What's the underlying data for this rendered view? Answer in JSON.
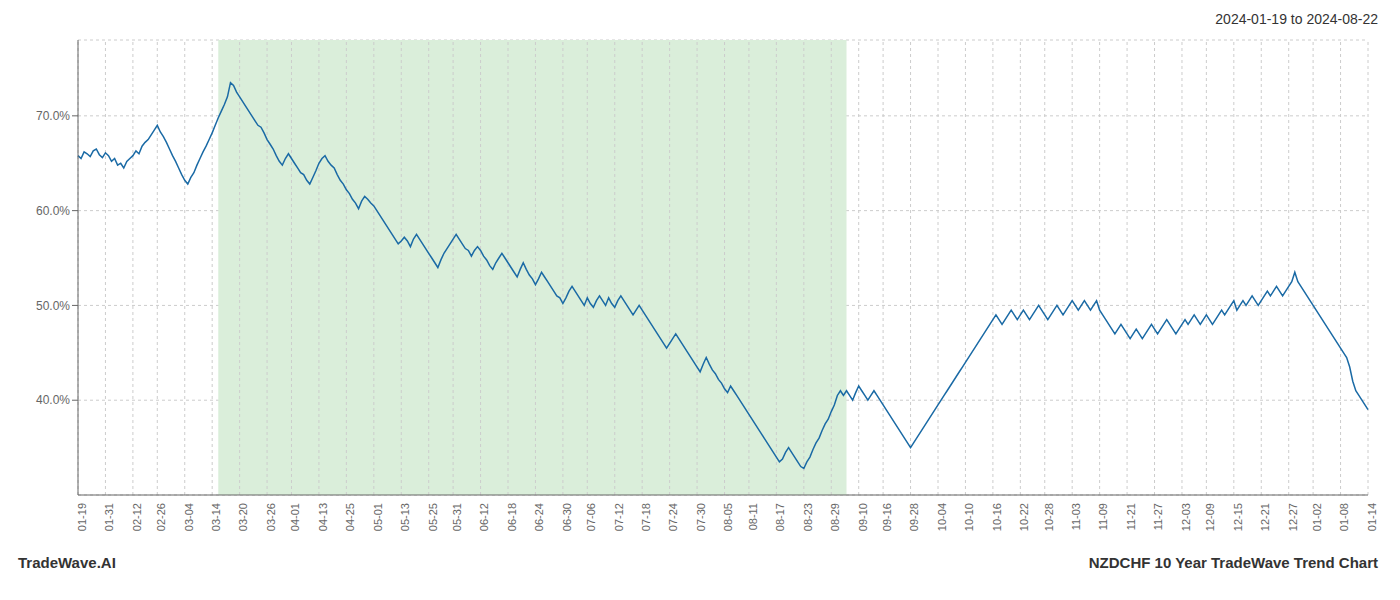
{
  "chart_data": {
    "type": "line",
    "title": "2024-01-19 to 2024-08-22",
    "annotations": [
      "TradeWave.AI",
      "NZDCHF 10 Year TradeWave Trend Chart"
    ],
    "color": "#1a6aa5",
    "grid": true,
    "ylim": [
      30,
      78
    ],
    "yticks": [
      {
        "value": 40,
        "label": "40.0%"
      },
      {
        "value": 50,
        "label": "50.0%"
      },
      {
        "value": 60,
        "label": "60.0%"
      },
      {
        "value": 70,
        "label": "70.0%"
      }
    ],
    "shaded_region": {
      "x_start_frac": 0.108,
      "x_end_frac": 0.595,
      "color": "#daeeda"
    },
    "categories": [
      "01-19",
      null,
      null,
      null,
      null,
      null,
      null,
      null,
      null,
      "01-31",
      null,
      null,
      null,
      null,
      null,
      null,
      null,
      null,
      "02-12",
      null,
      null,
      null,
      null,
      null,
      null,
      null,
      "02-26",
      null,
      null,
      null,
      null,
      null,
      null,
      null,
      null,
      "03-04",
      null,
      null,
      null,
      null,
      null,
      null,
      null,
      null,
      "03-14",
      null,
      null,
      null,
      null,
      null,
      null,
      null,
      null,
      "03-20",
      null,
      null,
      null,
      null,
      null,
      null,
      null,
      null,
      "03-26",
      null,
      null,
      null,
      null,
      null,
      null,
      null,
      "04-01",
      null,
      null,
      null,
      null,
      null,
      null,
      null,
      null,
      "04-13",
      null,
      null,
      null,
      null,
      null,
      null,
      null,
      null,
      "04-25",
      null,
      null,
      null,
      null,
      null,
      null,
      null,
      null,
      "05-01",
      null,
      null,
      null,
      null,
      null,
      null,
      null,
      null,
      "05-13",
      null,
      null,
      null,
      null,
      null,
      null,
      null,
      null,
      "05-25",
      null,
      null,
      null,
      null,
      null,
      null,
      null,
      "05-31",
      null,
      null,
      null,
      null,
      null,
      null,
      null,
      null,
      "06-12",
      null,
      null,
      null,
      null,
      null,
      null,
      null,
      null,
      "06-18",
      null,
      null,
      null,
      null,
      null,
      null,
      null,
      null,
      "06-24",
      null,
      null,
      null,
      null,
      null,
      null,
      null,
      null,
      "06-30",
      null,
      null,
      null,
      null,
      null,
      null,
      null,
      "07-06",
      null,
      null,
      null,
      null,
      null,
      null,
      null,
      null,
      "07-12",
      null,
      null,
      null,
      null,
      null,
      null,
      null,
      null,
      "07-18",
      null,
      null,
      null,
      null,
      null,
      null,
      null,
      null,
      "07-24",
      null,
      null,
      null,
      null,
      null,
      null,
      null,
      null,
      "07-30",
      null,
      null,
      null,
      null,
      null,
      null,
      null,
      null,
      "08-05",
      null,
      null,
      null,
      null,
      null,
      null,
      null,
      "08-11",
      null,
      null,
      null,
      null,
      null,
      null,
      null,
      null,
      "08-17",
      null,
      null,
      null,
      null,
      null,
      null,
      null,
      null,
      "08-23",
      null,
      null,
      null,
      null,
      null,
      null,
      null,
      null,
      "08-29",
      null,
      null,
      null,
      null,
      null,
      null,
      null,
      null,
      "09-10",
      null,
      null,
      null,
      null,
      null,
      null,
      null,
      "09-16",
      null,
      null,
      null,
      null,
      null,
      null,
      null,
      null,
      "09-28",
      null,
      null,
      null,
      null,
      null,
      null,
      null,
      null,
      "10-04",
      null,
      null,
      null,
      null,
      null,
      null,
      null,
      null,
      "10-10",
      null,
      null,
      null,
      null,
      null,
      null,
      null,
      null,
      "10-16",
      null,
      null,
      null,
      null,
      null,
      null,
      null,
      null,
      "10-22",
      null,
      null,
      null,
      null,
      null,
      null,
      null,
      "10-28",
      null,
      null,
      null,
      null,
      null,
      null,
      null,
      null,
      "11-03",
      null,
      null,
      null,
      null,
      null,
      null,
      null,
      null,
      "11-09",
      null,
      null,
      null,
      null,
      null,
      null,
      null,
      null,
      "11-21",
      null,
      null,
      null,
      null,
      null,
      null,
      null,
      null,
      "11-27",
      null,
      null,
      null,
      null,
      null,
      null,
      null,
      null,
      "12-03",
      null,
      null,
      null,
      null,
      null,
      null,
      null,
      "12-09",
      null,
      null,
      null,
      null,
      null,
      null,
      null,
      null,
      "12-15",
      null,
      null,
      null,
      null,
      null,
      null,
      null,
      null,
      "12-21",
      null,
      null,
      null,
      null,
      null,
      null,
      null,
      null,
      "12-27",
      null,
      null,
      null,
      null,
      null,
      null,
      null,
      "01-02",
      null,
      null,
      null,
      null,
      null,
      null,
      null,
      null,
      "01-08",
      null,
      null,
      null,
      null,
      null,
      null,
      null,
      null,
      "01-14"
    ],
    "values": [
      65.8,
      65.5,
      66.2,
      66.0,
      65.7,
      66.3,
      66.5,
      65.9,
      65.6,
      66.1,
      65.8,
      65.2,
      65.5,
      64.8,
      65.0,
      64.5,
      65.2,
      65.5,
      65.8,
      66.3,
      66.0,
      66.8,
      67.2,
      67.5,
      68.0,
      68.5,
      69.0,
      68.3,
      67.8,
      67.2,
      66.5,
      65.8,
      65.2,
      64.5,
      63.8,
      63.2,
      62.8,
      63.5,
      64.0,
      64.8,
      65.5,
      66.2,
      66.8,
      67.5,
      68.2,
      69.0,
      69.8,
      70.5,
      71.2,
      72.0,
      73.5,
      73.2,
      72.5,
      72.0,
      71.5,
      71.0,
      70.5,
      70.0,
      69.5,
      69.0,
      68.8,
      68.2,
      67.5,
      67.0,
      66.5,
      65.8,
      65.2,
      64.8,
      65.5,
      66.0,
      65.5,
      65.0,
      64.5,
      64.0,
      63.8,
      63.2,
      62.8,
      63.5,
      64.2,
      65.0,
      65.5,
      65.8,
      65.2,
      64.8,
      64.5,
      63.8,
      63.2,
      62.8,
      62.2,
      61.8,
      61.2,
      60.8,
      60.2,
      61.0,
      61.5,
      61.2,
      60.8,
      60.5,
      60.0,
      59.5,
      59.0,
      58.5,
      58.0,
      57.5,
      57.0,
      56.5,
      56.8,
      57.2,
      56.8,
      56.2,
      57.0,
      57.5,
      57.0,
      56.5,
      56.0,
      55.5,
      55.0,
      54.5,
      54.0,
      54.8,
      55.5,
      56.0,
      56.5,
      57.0,
      57.5,
      57.0,
      56.5,
      56.0,
      55.8,
      55.2,
      55.8,
      56.2,
      55.8,
      55.2,
      54.8,
      54.2,
      53.8,
      54.5,
      55.0,
      55.5,
      55.0,
      54.5,
      54.0,
      53.5,
      53.0,
      53.8,
      54.5,
      53.8,
      53.2,
      52.8,
      52.2,
      52.8,
      53.5,
      53.0,
      52.5,
      52.0,
      51.5,
      51.0,
      50.8,
      50.2,
      50.8,
      51.5,
      52.0,
      51.5,
      51.0,
      50.5,
      50.0,
      50.8,
      50.2,
      49.8,
      50.5,
      51.0,
      50.5,
      50.0,
      50.8,
      50.2,
      49.8,
      50.5,
      51.0,
      50.5,
      50.0,
      49.5,
      49.0,
      49.5,
      50.0,
      49.5,
      49.0,
      48.5,
      48.0,
      47.5,
      47.0,
      46.5,
      46.0,
      45.5,
      46.0,
      46.5,
      47.0,
      46.5,
      46.0,
      45.5,
      45.0,
      44.5,
      44.0,
      43.5,
      43.0,
      43.8,
      44.5,
      43.8,
      43.2,
      42.8,
      42.2,
      41.8,
      41.2,
      40.8,
      41.5,
      41.0,
      40.5,
      40.0,
      39.5,
      39.0,
      38.5,
      38.0,
      37.5,
      37.0,
      36.5,
      36.0,
      35.5,
      35.0,
      34.5,
      34.0,
      33.5,
      33.8,
      34.5,
      35.0,
      34.5,
      34.0,
      33.5,
      33.0,
      32.8,
      33.5,
      34.0,
      34.8,
      35.5,
      36.0,
      36.8,
      37.5,
      38.0,
      38.8,
      39.5,
      40.5,
      41.0,
      40.5,
      41.0,
      40.5,
      40.0,
      40.8,
      41.5,
      41.0,
      40.5,
      40.0,
      40.5,
      41.0,
      40.5,
      40.0,
      39.5,
      39.0,
      38.5,
      38.0,
      37.5,
      37.0,
      36.5,
      36.0,
      35.5,
      35.0,
      35.5,
      36.0,
      36.5,
      37.0,
      37.5,
      38.0,
      38.5,
      39.0,
      39.5,
      40.0,
      40.5,
      41.0,
      41.5,
      42.0,
      42.5,
      43.0,
      43.5,
      44.0,
      44.5,
      45.0,
      45.5,
      46.0,
      46.5,
      47.0,
      47.5,
      48.0,
      48.5,
      49.0,
      48.5,
      48.0,
      48.5,
      49.0,
      49.5,
      49.0,
      48.5,
      49.0,
      49.5,
      49.0,
      48.5,
      49.0,
      49.5,
      50.0,
      49.5,
      49.0,
      48.5,
      49.0,
      49.5,
      50.0,
      49.5,
      49.0,
      49.5,
      50.0,
      50.5,
      50.0,
      49.5,
      50.0,
      50.5,
      50.0,
      49.5,
      50.0,
      50.5,
      49.5,
      49.0,
      48.5,
      48.0,
      47.5,
      47.0,
      47.5,
      48.0,
      47.5,
      47.0,
      46.5,
      47.0,
      47.5,
      47.0,
      46.5,
      47.0,
      47.5,
      48.0,
      47.5,
      47.0,
      47.5,
      48.0,
      48.5,
      48.0,
      47.5,
      47.0,
      47.5,
      48.0,
      48.5,
      48.0,
      48.5,
      49.0,
      48.5,
      48.0,
      48.5,
      49.0,
      48.5,
      48.0,
      48.5,
      49.0,
      49.5,
      49.0,
      49.5,
      50.0,
      50.5,
      49.5,
      50.0,
      50.5,
      50.0,
      50.5,
      51.0,
      50.5,
      50.0,
      50.5,
      51.0,
      51.5,
      51.0,
      51.5,
      52.0,
      51.5,
      51.0,
      51.5,
      52.0,
      52.5,
      53.5,
      52.5,
      52.0,
      51.5,
      51.0,
      50.5,
      50.0,
      49.5,
      49.0,
      48.5,
      48.0,
      47.5,
      47.0,
      46.5,
      46.0,
      45.5,
      45.0,
      44.5,
      43.5,
      42.0,
      41.0,
      40.5,
      40.0,
      39.5,
      39.0
    ]
  }
}
